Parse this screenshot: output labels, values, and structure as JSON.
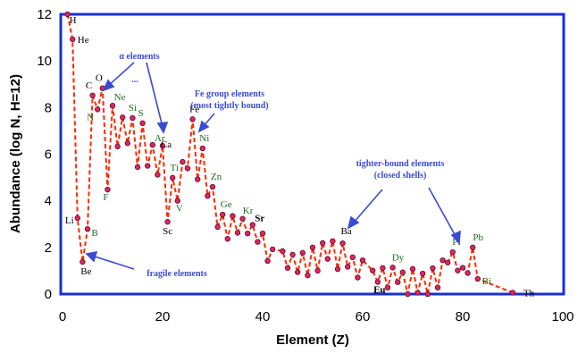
{
  "chart_data": {
    "type": "line",
    "xlabel": "Element (Z)",
    "ylabel": "Abundance (log N, H=12)",
    "xlim": [
      0,
      100
    ],
    "ylim": [
      0,
      12
    ],
    "xticks": [
      0,
      20,
      40,
      60,
      80,
      100
    ],
    "yticks": [
      0,
      2,
      4,
      6,
      8,
      10,
      12
    ],
    "grid": false,
    "colors": {
      "frame": "#1a2fd6",
      "line": "#ff2a00",
      "marker_fill": "#e0245e",
      "marker_edge": "#5a1030",
      "annotation": "#3b4bd0",
      "label_green": "#1f6b1f",
      "label_black": "#000000"
    },
    "series": [
      {
        "x": [
          1,
          2,
          3,
          4,
          5,
          6,
          7,
          8,
          9,
          10,
          11,
          12,
          13,
          14,
          15,
          16,
          17,
          18,
          19,
          20,
          21,
          22,
          23,
          24,
          25,
          26,
          27,
          28,
          29,
          30,
          31,
          32,
          33,
          34,
          35,
          36,
          37,
          38,
          39,
          40,
          41,
          42,
          44,
          45,
          46,
          47,
          48,
          49,
          50,
          51,
          52,
          53,
          54,
          55,
          56,
          57,
          58,
          59,
          60,
          62,
          63,
          64,
          65,
          66,
          67,
          68,
          69,
          70,
          71,
          72,
          73,
          74,
          75,
          76,
          77,
          78,
          79,
          80,
          81,
          82,
          83,
          90
        ],
        "y": [
          12.0,
          10.93,
          3.26,
          1.38,
          2.79,
          8.52,
          7.92,
          8.83,
          4.48,
          8.08,
          6.33,
          7.58,
          6.47,
          7.55,
          5.45,
          7.33,
          5.5,
          6.4,
          5.12,
          6.36,
          3.1,
          4.99,
          4.0,
          5.67,
          5.39,
          7.5,
          4.92,
          6.25,
          4.21,
          4.6,
          2.88,
          3.41,
          2.37,
          3.35,
          2.63,
          3.23,
          2.6,
          2.97,
          2.24,
          2.6,
          1.42,
          1.92,
          1.84,
          1.12,
          1.69,
          0.94,
          1.77,
          0.8,
          2.0,
          1.0,
          2.19,
          1.51,
          2.27,
          1.07,
          2.18,
          1.17,
          1.58,
          0.71,
          1.45,
          1.01,
          0.52,
          1.12,
          0.28,
          1.14,
          0.51,
          0.93,
          0.0,
          1.08,
          0.06,
          0.88,
          -0.13,
          1.11,
          0.28,
          1.45,
          1.35,
          1.8,
          1.01,
          1.13,
          0.9,
          2.0,
          0.65,
          0.06
        ]
      }
    ],
    "element_labels": [
      {
        "t": "H",
        "z": 1,
        "v": 12.0,
        "c": "k"
      },
      {
        "t": "He",
        "z": 2,
        "v": 10.93,
        "c": "k"
      },
      {
        "t": "Li",
        "z": 3,
        "v": 3.26,
        "c": "k"
      },
      {
        "t": "Be",
        "z": 4,
        "v": 1.38,
        "c": "k"
      },
      {
        "t": "B",
        "z": 5,
        "v": 2.79,
        "c": "g"
      },
      {
        "t": "C",
        "z": 6,
        "v": 8.52,
        "c": "k"
      },
      {
        "t": "N",
        "z": 7,
        "v": 7.92,
        "c": "g"
      },
      {
        "t": "O",
        "z": 8,
        "v": 8.83,
        "c": "k"
      },
      {
        "t": "F",
        "z": 9,
        "v": 4.48,
        "c": "g"
      },
      {
        "t": "Ne",
        "z": 10,
        "v": 8.08,
        "c": "g"
      },
      {
        "t": "Si",
        "z": 14,
        "v": 7.55,
        "c": "g"
      },
      {
        "t": "S",
        "z": 16,
        "v": 7.33,
        "c": "g"
      },
      {
        "t": "Ar",
        "z": 18,
        "v": 6.4,
        "c": "g"
      },
      {
        "t": "Ca",
        "z": 20,
        "v": 6.36,
        "c": "k"
      },
      {
        "t": "Sc",
        "z": 21,
        "v": 3.1,
        "c": "k"
      },
      {
        "t": "Ti",
        "z": 22,
        "v": 4.99,
        "c": "g"
      },
      {
        "t": "V",
        "z": 23,
        "v": 4.0,
        "c": "g"
      },
      {
        "t": "Fe",
        "z": 26,
        "v": 7.5,
        "c": "k"
      },
      {
        "t": "Ni",
        "z": 28,
        "v": 6.25,
        "c": "g"
      },
      {
        "t": "Zn",
        "z": 30,
        "v": 4.6,
        "c": "g"
      },
      {
        "t": "Ge",
        "z": 32,
        "v": 3.41,
        "c": "g"
      },
      {
        "t": "Kr",
        "z": 36,
        "v": 3.23,
        "c": "g"
      },
      {
        "t": "Sr",
        "z": 38,
        "v": 2.97,
        "c": "k",
        "bold": true
      },
      {
        "t": "Ba",
        "z": 56,
        "v": 2.18,
        "c": "k"
      },
      {
        "t": "Eu",
        "z": 63,
        "v": 0.52,
        "c": "k",
        "bold": true
      },
      {
        "t": "Dy",
        "z": 66,
        "v": 1.14,
        "c": "g"
      },
      {
        "t": "Pt",
        "z": 78,
        "v": 1.8,
        "c": "g"
      },
      {
        "t": "Pb",
        "z": 82,
        "v": 2.0,
        "c": "g"
      },
      {
        "t": "Bi",
        "z": 83,
        "v": 0.65,
        "c": "g"
      },
      {
        "t": "Th",
        "z": 90,
        "v": 0.06,
        "c": "k"
      }
    ],
    "annotations": {
      "alpha": "α elements",
      "ellipsis": "...",
      "fe_group_1": "Fe group elements",
      "fe_group_2": "(most tightly bound)",
      "tighter_1": "tighter-bound elements",
      "tighter_2": "(closed shells)",
      "fragile": "fragile elements"
    }
  }
}
